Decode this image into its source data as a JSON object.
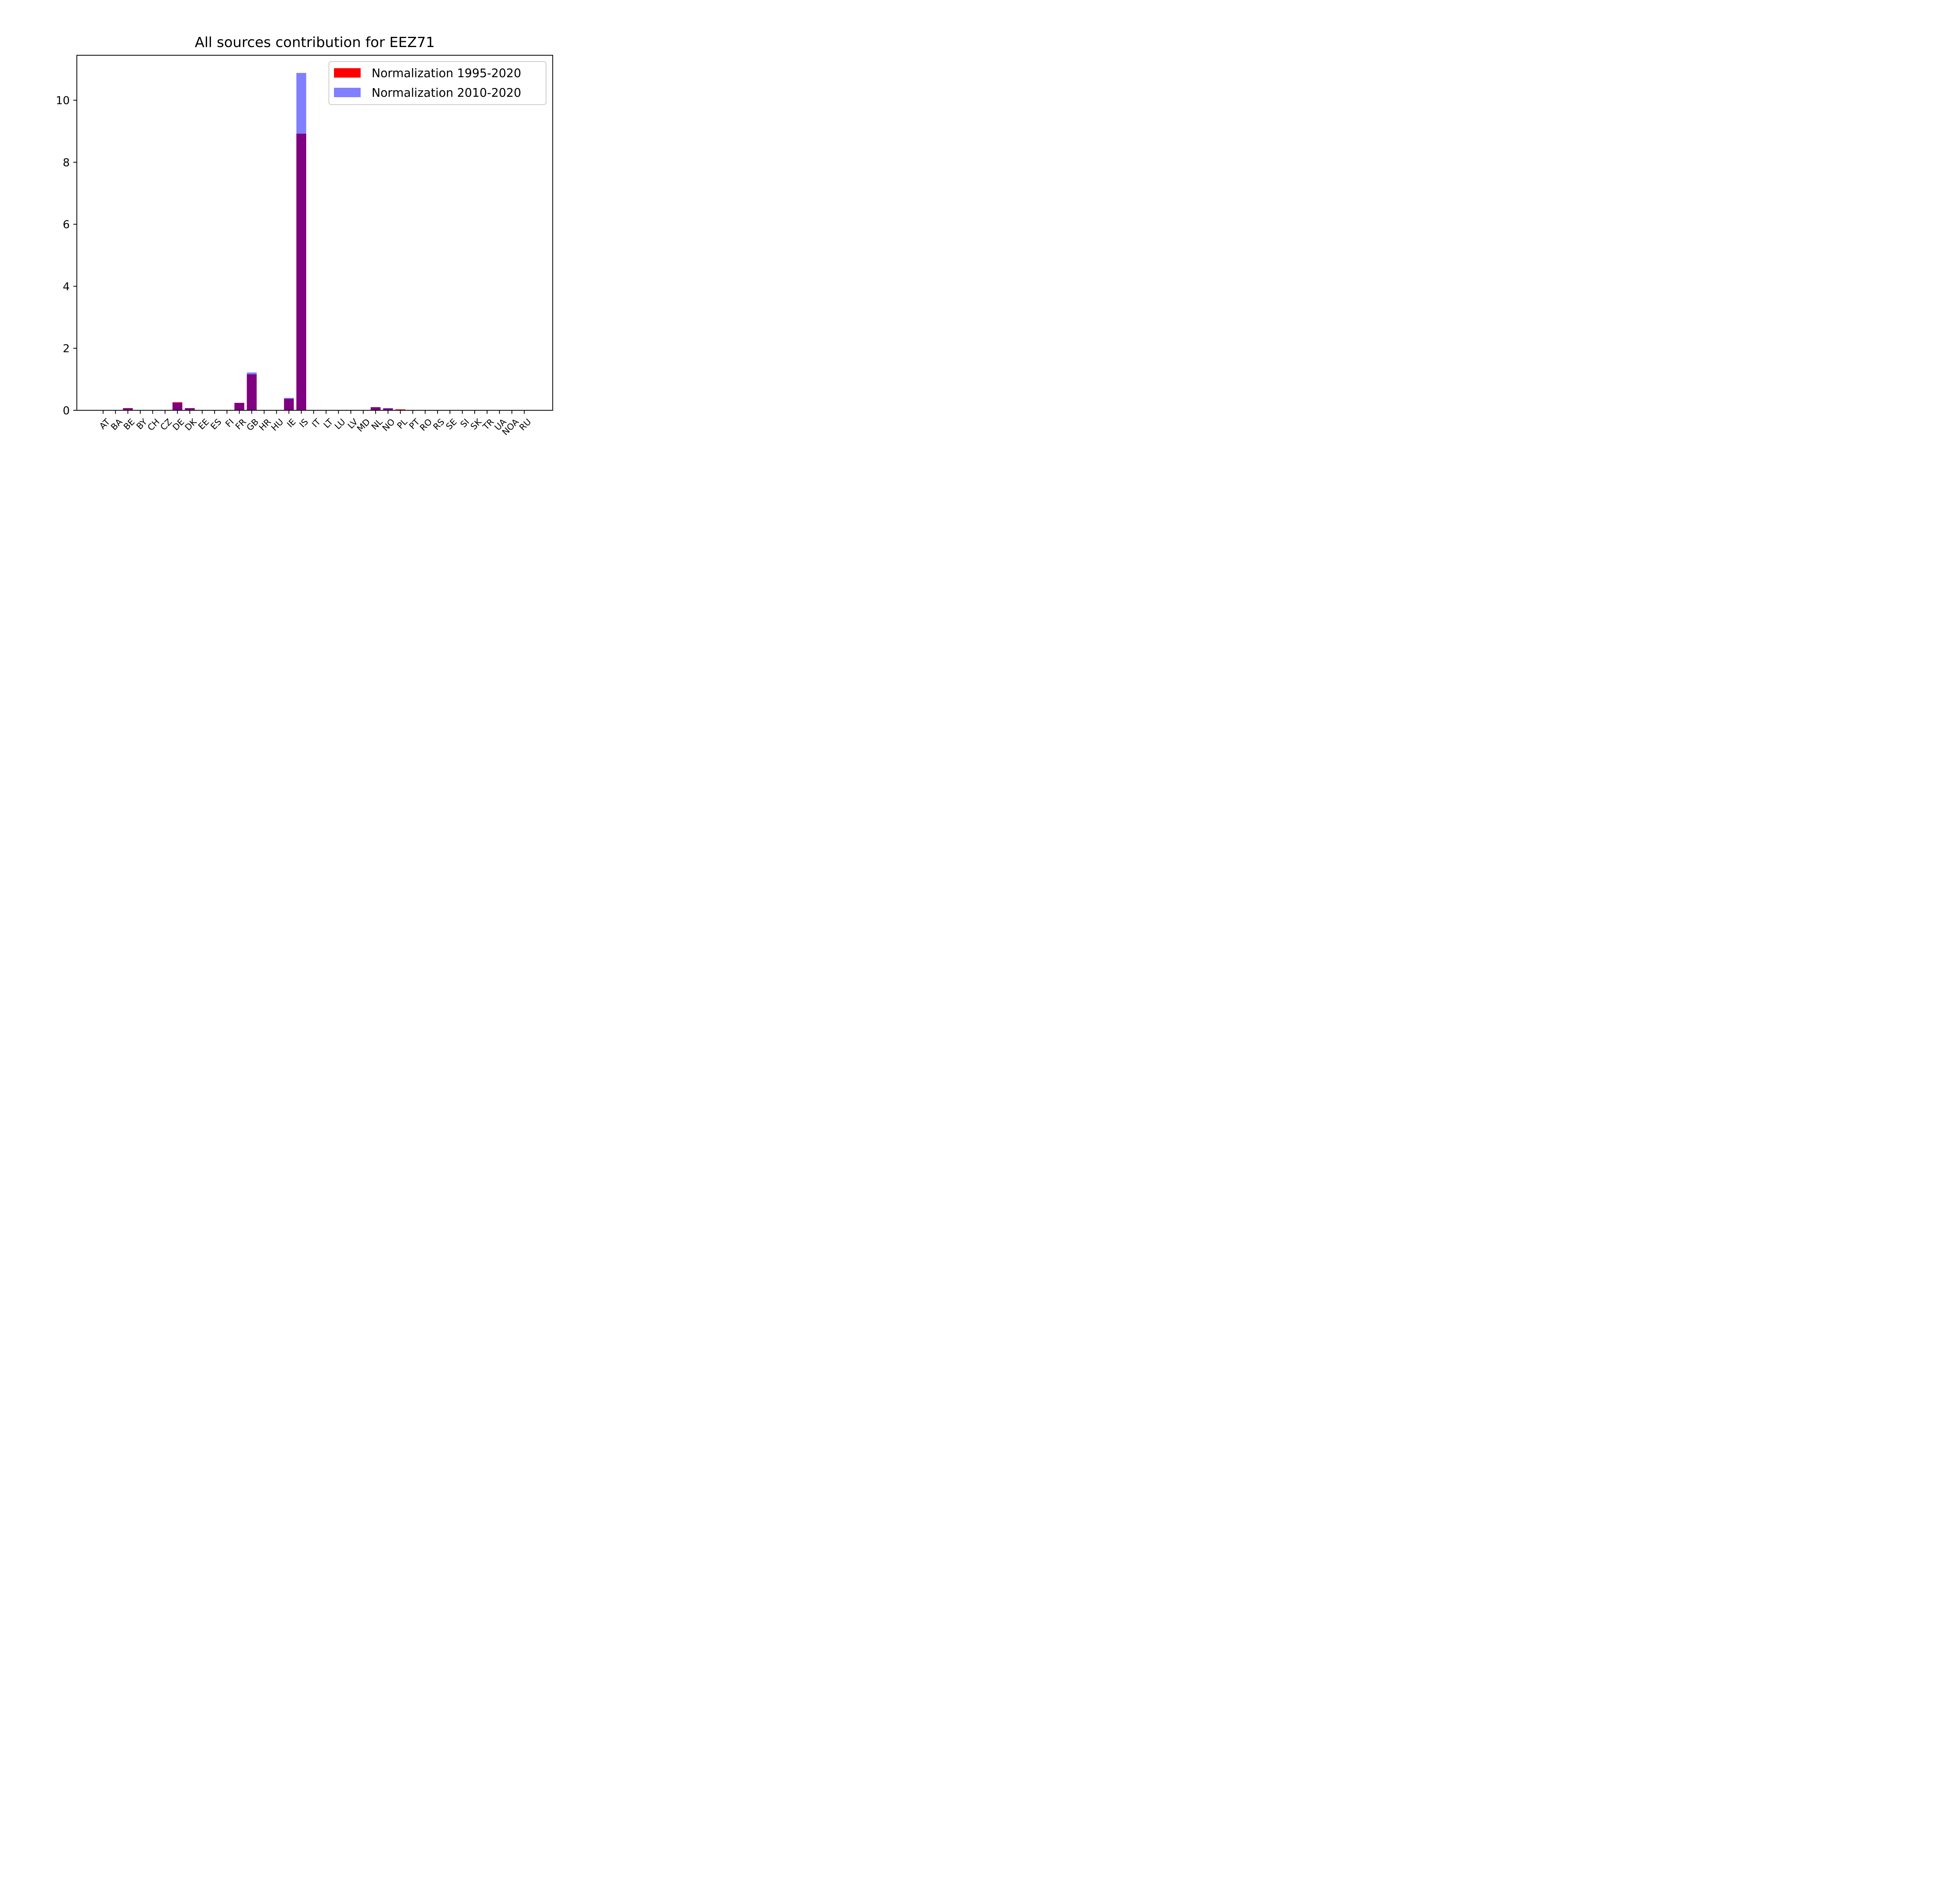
{
  "chart_data": {
    "type": "bar",
    "title": "All sources contribution for EEZ71",
    "xlabel": "",
    "ylabel": "",
    "ylim": [
      0,
      11.45
    ],
    "yticks": [
      0,
      2,
      4,
      6,
      8,
      10
    ],
    "ytick_labels": [
      "0",
      "2",
      "4",
      "6",
      "8",
      "10"
    ],
    "categories": [
      "AT",
      "BA",
      "BE",
      "BY",
      "CH",
      "CZ",
      "DE",
      "DK",
      "EE",
      "ES",
      "FI",
      "FR",
      "GB",
      "HR",
      "HU",
      "IE",
      "IS",
      "IT",
      "LT",
      "LU",
      "LV",
      "MD",
      "NL",
      "NO",
      "PL",
      "PT",
      "RO",
      "RS",
      "SE",
      "SI",
      "SK",
      "TR",
      "UA",
      "NOA",
      "RU"
    ],
    "series": [
      {
        "name": "Normalization 1995-2020",
        "color": "#ff0000",
        "opacity": 1.0,
        "values": [
          0.0,
          0.0,
          0.07,
          0.0,
          0.0,
          0.0,
          0.26,
          0.07,
          0.0,
          0.01,
          0.0,
          0.24,
          1.16,
          0.0,
          0.0,
          0.37,
          8.92,
          0.0,
          0.0,
          0.0,
          0.0,
          0.0,
          0.1,
          0.06,
          0.03,
          0.0,
          0.0,
          0.0,
          0.01,
          0.0,
          0.0,
          0.0,
          0.0,
          0.0,
          0.0
        ]
      },
      {
        "name": "Normalization 2010-2020",
        "color": "#0000ff",
        "opacity": 0.5,
        "values": [
          0.0,
          0.0,
          0.07,
          0.0,
          0.0,
          0.0,
          0.24,
          0.07,
          0.0,
          0.01,
          0.0,
          0.24,
          1.22,
          0.0,
          0.0,
          0.4,
          10.88,
          0.0,
          0.0,
          0.0,
          0.0,
          0.0,
          0.1,
          0.07,
          0.01,
          0.0,
          0.0,
          0.0,
          0.01,
          0.0,
          0.0,
          0.0,
          0.0,
          0.0,
          0.0
        ]
      }
    ],
    "grid": false,
    "legend_position": "top-right"
  }
}
